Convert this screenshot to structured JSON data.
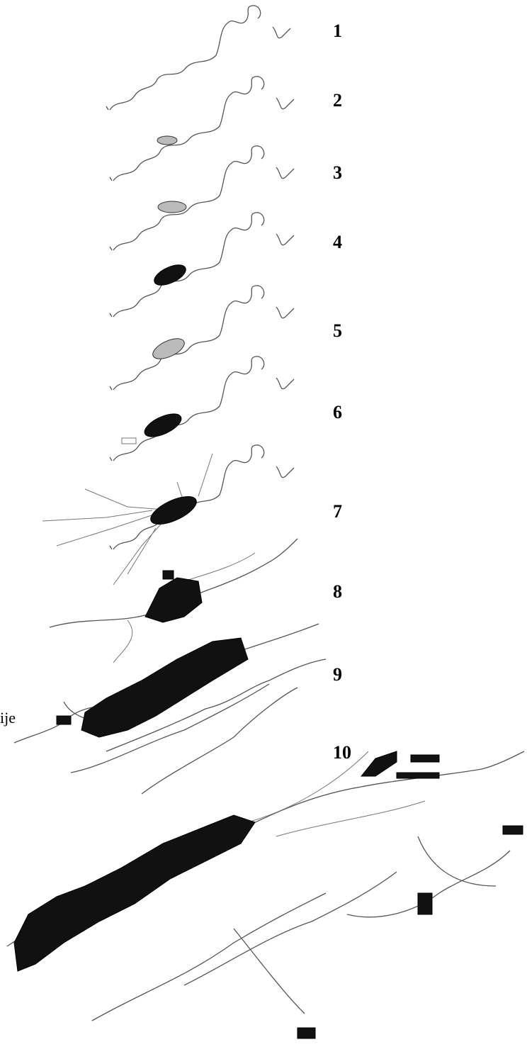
{
  "labels": [
    "1",
    "2",
    "3",
    "4",
    "5",
    "6",
    "7",
    "8",
    "9",
    "10"
  ],
  "fragment": "ije"
}
